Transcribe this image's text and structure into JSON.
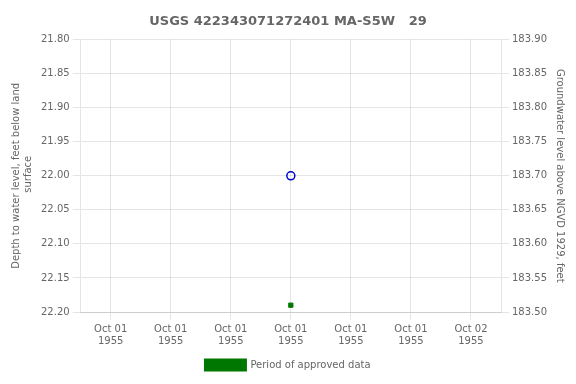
{
  "chart_data": {
    "type": "scatter",
    "title": "USGS 422343071272401 MA-S5W   29",
    "categories": [
      "Oct 01\n1955",
      "Oct 01\n1955",
      "Oct 01\n1955",
      "Oct 01\n1955",
      "Oct 01\n1955",
      "Oct 01\n1955",
      "Oct 02\n1955"
    ],
    "series": [
      {
        "color": "#0000cc",
        "marker": "open_circle",
        "values": [
          null,
          null,
          null,
          22.0,
          null,
          null,
          null
        ]
      },
      {
        "name": "Period of approved data",
        "color": "#007700",
        "marker": "square",
        "values": [
          null,
          null,
          null,
          22.19,
          null,
          null,
          null
        ]
      }
    ],
    "y_label": "Depth to water level, feet below land\n surface",
    "y2_label": "Groundwater level above NGVD 1929, feet",
    "ylim": [
      22.2,
      21.8
    ],
    "yticks": [
      {
        "value": 21.8,
        "label": "21.80"
      },
      {
        "value": 21.85,
        "label": "21.85"
      },
      {
        "value": 21.9,
        "label": "21.90"
      },
      {
        "value": 21.95,
        "label": "21.95"
      },
      {
        "value": 22.0,
        "label": "22.00"
      },
      {
        "value": 22.05,
        "label": "22.05"
      },
      {
        "value": 22.1,
        "label": "22.10"
      },
      {
        "value": 22.15,
        "label": "22.15"
      },
      {
        "value": 22.2,
        "label": "22.20"
      }
    ],
    "y2lim": [
      183.5,
      183.9
    ],
    "y2ticks": [
      {
        "value": 183.5,
        "label": "183.50"
      },
      {
        "value": 183.55,
        "label": "183.55"
      },
      {
        "value": 183.6,
        "label": "183.60"
      },
      {
        "value": 183.65,
        "label": "183.65"
      },
      {
        "value": 183.7,
        "label": "183.70"
      },
      {
        "value": 183.75,
        "label": "183.75"
      },
      {
        "value": 183.8,
        "label": "183.80"
      },
      {
        "value": 183.85,
        "label": "183.85"
      },
      {
        "value": 183.9,
        "label": "183.90"
      }
    ],
    "grid": true,
    "legend": "bottom"
  }
}
